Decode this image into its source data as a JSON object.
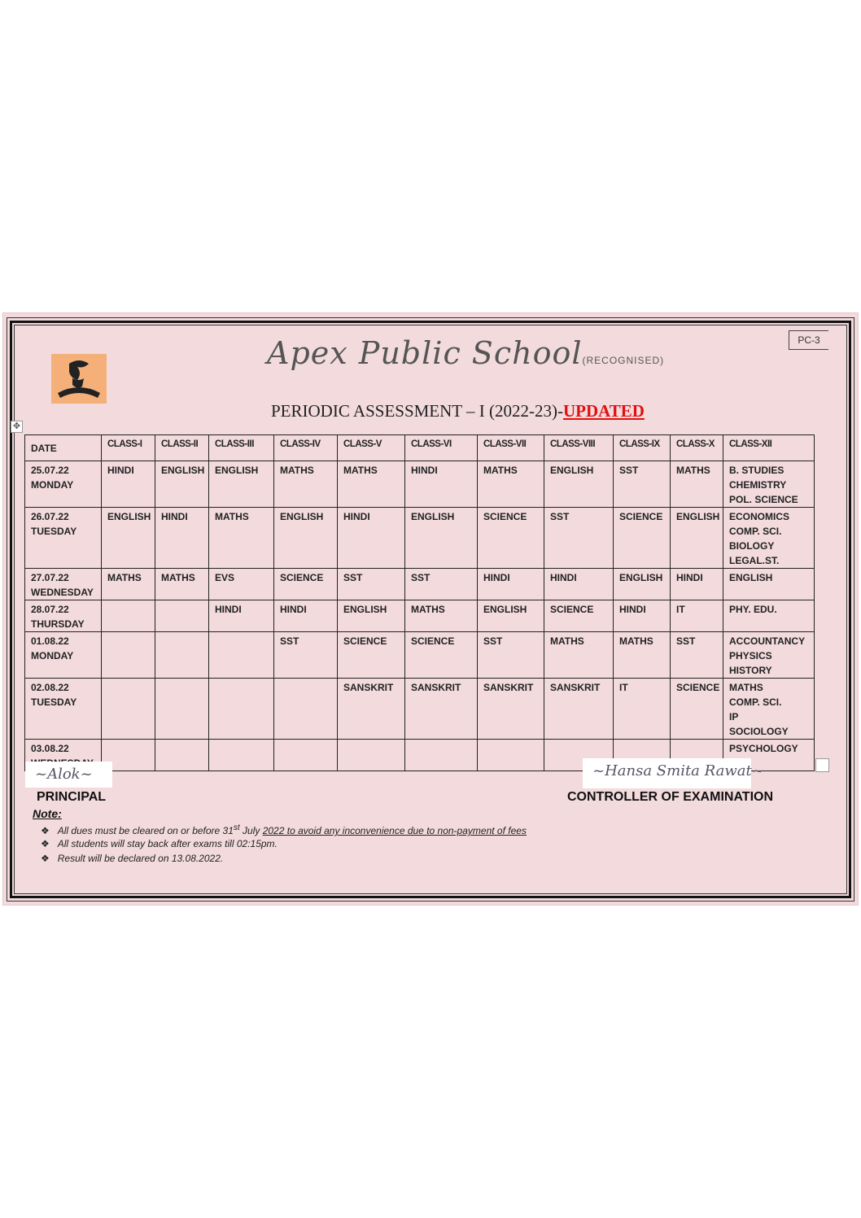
{
  "header": {
    "school_name": "Apex Public School",
    "recognised": "(RECOGNISED)",
    "code": "PC-3",
    "title": "PERIODIC ASSESSMENT – I (2022-23)-",
    "title_highlight": "UPDATED",
    "highlight_color": "#e01010",
    "logo": "school-crest"
  },
  "table": {
    "headers": [
      "DATE",
      "CLASS-I",
      "CLASS-II",
      "CLASS-III",
      "CLASS-IV",
      "CLASS-V",
      "CLASS-VI",
      "CLASS-VII",
      "CLASS-VIII",
      "CLASS-IX",
      "CLASS-X",
      "CLASS-XII"
    ],
    "rows": [
      [
        "25.07.22\nMONDAY",
        "HINDI",
        "ENGLISH",
        "ENGLISH",
        "MATHS",
        "MATHS",
        "HINDI",
        "MATHS",
        "ENGLISH",
        "SST",
        "MATHS",
        "B. STUDIES\nCHEMISTRY\nPOL. SCIENCE"
      ],
      [
        "26.07.22\nTUESDAY",
        "ENGLISH",
        "HINDI",
        "MATHS",
        "ENGLISH",
        "HINDI",
        "ENGLISH",
        "SCIENCE",
        "SST",
        "SCIENCE",
        "ENGLISH",
        "ECONOMICS\nCOMP. SCI.\nBIOLOGY\nLEGAL.ST."
      ],
      [
        "27.07.22\nWEDNESDAY",
        "MATHS",
        "MATHS",
        "EVS",
        "SCIENCE",
        "SST",
        "SST",
        "HINDI",
        "HINDI",
        "ENGLISH",
        "HINDI",
        "ENGLISH"
      ],
      [
        "28.07.22\nTHURSDAY",
        "",
        "",
        "HINDI",
        "HINDI",
        "ENGLISH",
        "MATHS",
        "ENGLISH",
        "SCIENCE",
        "HINDI",
        "IT",
        "PHY. EDU."
      ],
      [
        "01.08.22\nMONDAY",
        "",
        "",
        "",
        "SST",
        "SCIENCE",
        "SCIENCE",
        "SST",
        "MATHS",
        "MATHS",
        "SST",
        "ACCOUNTANCY\nPHYSICS\nHISTORY"
      ],
      [
        "02.08.22\nTUESDAY",
        "",
        "",
        "",
        "",
        "SANSKRIT",
        "SANSKRIT",
        "SANSKRIT",
        "SANSKRIT",
        "IT",
        "SCIENCE",
        "MATHS\nCOMP. SCI.\nIP\nSOCIOLOGY"
      ],
      [
        "03.08.22\nWEDNESDAY",
        "",
        "",
        "",
        "",
        "",
        "",
        "",
        "",
        "",
        "",
        "PSYCHOLOGY"
      ]
    ]
  },
  "signatures": {
    "principal": "PRINCIPAL",
    "principal_sign": "Alok",
    "controller": "CONTROLLER OF EXAMINATION",
    "controller_sign": "Hansa Smita Rawat"
  },
  "notes": {
    "heading": "Note:",
    "items": [
      {
        "pre": "All dues must be cleared on or before 31",
        "sup": "st",
        "mid": " July ",
        "underlined": "2022 to avoid any inconvenience due to non-payment of fees"
      },
      {
        "text": "All students will stay back after exams till 02:15pm."
      },
      {
        "text": "Result will be declared on 13.08.2022."
      }
    ],
    "bullet": "❖"
  }
}
